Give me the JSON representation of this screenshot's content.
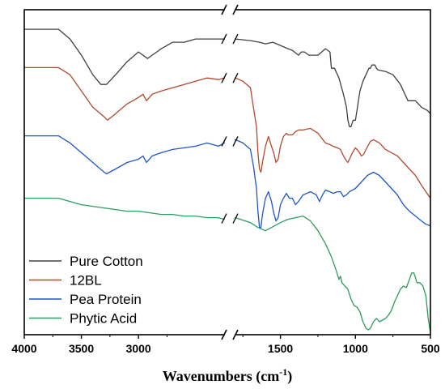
{
  "chart_data": {
    "type": "line",
    "xlabel": "Wavenumbers (cm",
    "xlabel_sup": "-1",
    "xlabel_end": ")",
    "ylabel": "",
    "x_reversed": true,
    "axis_break_between": [
      2250,
      1800
    ],
    "x_segments": [
      [
        4000,
        2250
      ],
      [
        1800,
        500
      ]
    ],
    "x_ticks": [
      4000,
      3500,
      3000,
      1500,
      1000,
      500
    ],
    "x_tick_labels": [
      "4000",
      "3500",
      "3000",
      "1500",
      "1000",
      "500"
    ],
    "grid": false,
    "legend_position": "bottom-left",
    "series": [
      {
        "name": "Pure Cotton",
        "color": "#404040",
        "points": [
          [
            4000,
            0.94
          ],
          [
            3700,
            0.94
          ],
          [
            3600,
            0.91
          ],
          [
            3500,
            0.86
          ],
          [
            3400,
            0.8
          ],
          [
            3330,
            0.77
          ],
          [
            3280,
            0.77
          ],
          [
            3200,
            0.8
          ],
          [
            3100,
            0.84
          ],
          [
            3000,
            0.87
          ],
          [
            2920,
            0.85
          ],
          [
            2880,
            0.86
          ],
          [
            2800,
            0.88
          ],
          [
            2700,
            0.9
          ],
          [
            2600,
            0.9
          ],
          [
            2500,
            0.91
          ],
          [
            2400,
            0.91
          ],
          [
            2300,
            0.91
          ],
          [
            2250,
            0.91
          ],
          [
            1800,
            0.91
          ],
          [
            1700,
            0.905
          ],
          [
            1640,
            0.9
          ],
          [
            1600,
            0.895
          ],
          [
            1550,
            0.9
          ],
          [
            1500,
            0.89
          ],
          [
            1450,
            0.88
          ],
          [
            1420,
            0.875
          ],
          [
            1380,
            0.86
          ],
          [
            1360,
            0.87
          ],
          [
            1340,
            0.87
          ],
          [
            1310,
            0.86
          ],
          [
            1250,
            0.86
          ],
          [
            1200,
            0.88
          ],
          [
            1170,
            0.87
          ],
          [
            1160,
            0.82
          ],
          [
            1140,
            0.82
          ],
          [
            1120,
            0.8
          ],
          [
            1110,
            0.79
          ],
          [
            1080,
            0.74
          ],
          [
            1060,
            0.7
          ],
          [
            1050,
            0.66
          ],
          [
            1040,
            0.64
          ],
          [
            1030,
            0.64
          ],
          [
            1015,
            0.66
          ],
          [
            1000,
            0.66
          ],
          [
            990,
            0.69
          ],
          [
            980,
            0.72
          ],
          [
            970,
            0.75
          ],
          [
            950,
            0.78
          ],
          [
            930,
            0.8
          ],
          [
            910,
            0.82
          ],
          [
            900,
            0.82
          ],
          [
            890,
            0.83
          ],
          [
            870,
            0.83
          ],
          [
            860,
            0.82
          ],
          [
            850,
            0.815
          ],
          [
            800,
            0.81
          ],
          [
            750,
            0.8
          ],
          [
            700,
            0.77
          ],
          [
            650,
            0.72
          ],
          [
            600,
            0.72
          ],
          [
            560,
            0.7
          ],
          [
            520,
            0.69
          ],
          [
            500,
            0.68
          ]
        ]
      },
      {
        "name": "12BL",
        "color": "#b04a2e",
        "points": [
          [
            4000,
            0.822
          ],
          [
            3700,
            0.822
          ],
          [
            3600,
            0.8
          ],
          [
            3500,
            0.75
          ],
          [
            3400,
            0.7
          ],
          [
            3300,
            0.67
          ],
          [
            3270,
            0.66
          ],
          [
            3200,
            0.68
          ],
          [
            3100,
            0.71
          ],
          [
            3000,
            0.73
          ],
          [
            2960,
            0.74
          ],
          [
            2930,
            0.72
          ],
          [
            2880,
            0.74
          ],
          [
            2800,
            0.75
          ],
          [
            2700,
            0.76
          ],
          [
            2600,
            0.77
          ],
          [
            2500,
            0.78
          ],
          [
            2400,
            0.79
          ],
          [
            2300,
            0.785
          ],
          [
            2250,
            0.79
          ],
          [
            1800,
            0.79
          ],
          [
            1750,
            0.78
          ],
          [
            1700,
            0.76
          ],
          [
            1680,
            0.7
          ],
          [
            1660,
            0.64
          ],
          [
            1650,
            0.56
          ],
          [
            1640,
            0.51
          ],
          [
            1630,
            0.5
          ],
          [
            1620,
            0.53
          ],
          [
            1600,
            0.58
          ],
          [
            1580,
            0.61
          ],
          [
            1560,
            0.58
          ],
          [
            1545,
            0.56
          ],
          [
            1530,
            0.53
          ],
          [
            1515,
            0.54
          ],
          [
            1500,
            0.58
          ],
          [
            1480,
            0.61
          ],
          [
            1460,
            0.62
          ],
          [
            1450,
            0.615
          ],
          [
            1420,
            0.615
          ],
          [
            1400,
            0.625
          ],
          [
            1380,
            0.63
          ],
          [
            1350,
            0.63
          ],
          [
            1300,
            0.635
          ],
          [
            1250,
            0.62
          ],
          [
            1200,
            0.59
          ],
          [
            1170,
            0.585
          ],
          [
            1150,
            0.58
          ],
          [
            1120,
            0.575
          ],
          [
            1100,
            0.57
          ],
          [
            1080,
            0.55
          ],
          [
            1060,
            0.535
          ],
          [
            1050,
            0.53
          ],
          [
            1040,
            0.54
          ],
          [
            1020,
            0.56
          ],
          [
            1000,
            0.575
          ],
          [
            980,
            0.565
          ],
          [
            960,
            0.55
          ],
          [
            945,
            0.555
          ],
          [
            930,
            0.57
          ],
          [
            900,
            0.595
          ],
          [
            880,
            0.6
          ],
          [
            860,
            0.595
          ],
          [
            840,
            0.59
          ],
          [
            800,
            0.57
          ],
          [
            760,
            0.56
          ],
          [
            720,
            0.55
          ],
          [
            680,
            0.53
          ],
          [
            640,
            0.51
          ],
          [
            600,
            0.49
          ],
          [
            560,
            0.46
          ],
          [
            530,
            0.44
          ],
          [
            500,
            0.42
          ]
        ]
      },
      {
        "name": "Pea Protein",
        "color": "#1f56c9",
        "points": [
          [
            4000,
            0.612
          ],
          [
            3700,
            0.612
          ],
          [
            3600,
            0.59
          ],
          [
            3500,
            0.56
          ],
          [
            3400,
            0.53
          ],
          [
            3300,
            0.5
          ],
          [
            3280,
            0.495
          ],
          [
            3200,
            0.51
          ],
          [
            3100,
            0.53
          ],
          [
            3000,
            0.54
          ],
          [
            2960,
            0.55
          ],
          [
            2930,
            0.53
          ],
          [
            2880,
            0.55
          ],
          [
            2800,
            0.56
          ],
          [
            2700,
            0.57
          ],
          [
            2600,
            0.575
          ],
          [
            2500,
            0.58
          ],
          [
            2400,
            0.59
          ],
          [
            2300,
            0.58
          ],
          [
            2250,
            0.59
          ],
          [
            1800,
            0.6
          ],
          [
            1750,
            0.59
          ],
          [
            1700,
            0.57
          ],
          [
            1680,
            0.52
          ],
          [
            1660,
            0.45
          ],
          [
            1650,
            0.38
          ],
          [
            1640,
            0.33
          ],
          [
            1630,
            0.33
          ],
          [
            1620,
            0.37
          ],
          [
            1600,
            0.42
          ],
          [
            1580,
            0.44
          ],
          [
            1560,
            0.41
          ],
          [
            1545,
            0.375
          ],
          [
            1530,
            0.35
          ],
          [
            1515,
            0.36
          ],
          [
            1500,
            0.4
          ],
          [
            1480,
            0.42
          ],
          [
            1460,
            0.435
          ],
          [
            1440,
            0.42
          ],
          [
            1420,
            0.42
          ],
          [
            1400,
            0.4
          ],
          [
            1380,
            0.41
          ],
          [
            1350,
            0.43
          ],
          [
            1300,
            0.44
          ],
          [
            1260,
            0.43
          ],
          [
            1240,
            0.41
          ],
          [
            1220,
            0.43
          ],
          [
            1200,
            0.445
          ],
          [
            1170,
            0.44
          ],
          [
            1150,
            0.435
          ],
          [
            1120,
            0.44
          ],
          [
            1100,
            0.44
          ],
          [
            1080,
            0.425
          ],
          [
            1060,
            0.43
          ],
          [
            1040,
            0.44
          ],
          [
            1000,
            0.45
          ],
          [
            960,
            0.47
          ],
          [
            920,
            0.49
          ],
          [
            880,
            0.5
          ],
          [
            860,
            0.495
          ],
          [
            840,
            0.49
          ],
          [
            800,
            0.47
          ],
          [
            760,
            0.45
          ],
          [
            720,
            0.43
          ],
          [
            680,
            0.4
          ],
          [
            640,
            0.38
          ],
          [
            600,
            0.365
          ],
          [
            560,
            0.35
          ],
          [
            530,
            0.34
          ],
          [
            500,
            0.335
          ]
        ]
      },
      {
        "name": "Phytic Acid",
        "color": "#2e9b5f",
        "points": [
          [
            4000,
            0.42
          ],
          [
            3700,
            0.42
          ],
          [
            3600,
            0.41
          ],
          [
            3500,
            0.4
          ],
          [
            3400,
            0.395
          ],
          [
            3300,
            0.39
          ],
          [
            3200,
            0.385
          ],
          [
            3100,
            0.38
          ],
          [
            3000,
            0.38
          ],
          [
            2900,
            0.375
          ],
          [
            2800,
            0.37
          ],
          [
            2700,
            0.37
          ],
          [
            2600,
            0.365
          ],
          [
            2500,
            0.365
          ],
          [
            2400,
            0.36
          ],
          [
            2300,
            0.36
          ],
          [
            2250,
            0.355
          ],
          [
            1800,
            0.36
          ],
          [
            1700,
            0.345
          ],
          [
            1650,
            0.33
          ],
          [
            1600,
            0.32
          ],
          [
            1560,
            0.33
          ],
          [
            1500,
            0.345
          ],
          [
            1450,
            0.355
          ],
          [
            1400,
            0.36
          ],
          [
            1350,
            0.365
          ],
          [
            1300,
            0.35
          ],
          [
            1250,
            0.32
          ],
          [
            1200,
            0.28
          ],
          [
            1160,
            0.24
          ],
          [
            1130,
            0.2
          ],
          [
            1110,
            0.17
          ],
          [
            1100,
            0.18
          ],
          [
            1090,
            0.16
          ],
          [
            1070,
            0.15
          ],
          [
            1050,
            0.14
          ],
          [
            1030,
            0.11
          ],
          [
            1010,
            0.09
          ],
          [
            990,
            0.085
          ],
          [
            970,
            0.07
          ],
          [
            950,
            0.04
          ],
          [
            930,
            0.02
          ],
          [
            915,
            0.015
          ],
          [
            900,
            0.02
          ],
          [
            880,
            0.04
          ],
          [
            860,
            0.05
          ],
          [
            840,
            0.04
          ],
          [
            820,
            0.045
          ],
          [
            800,
            0.05
          ],
          [
            780,
            0.06
          ],
          [
            760,
            0.075
          ],
          [
            740,
            0.1
          ],
          [
            720,
            0.12
          ],
          [
            700,
            0.14
          ],
          [
            680,
            0.15
          ],
          [
            660,
            0.145
          ],
          [
            640,
            0.17
          ],
          [
            625,
            0.19
          ],
          [
            610,
            0.19
          ],
          [
            600,
            0.175
          ],
          [
            590,
            0.16
          ],
          [
            570,
            0.16
          ],
          [
            550,
            0.15
          ],
          [
            530,
            0.12
          ],
          [
            515,
            0.05
          ],
          [
            505,
            0.02
          ],
          [
            500,
            0.01
          ]
        ]
      }
    ]
  }
}
